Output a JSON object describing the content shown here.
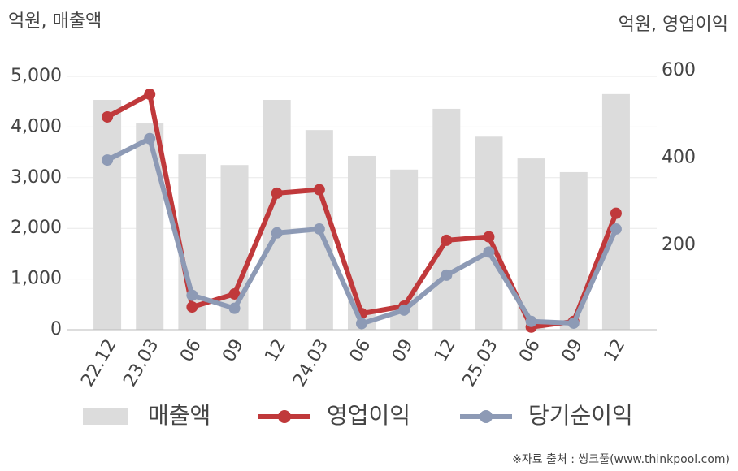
{
  "chart_data": {
    "type": "bar-line",
    "y_unit_label": "억원, 매출액",
    "y2_unit_label": "억원, 영업이익",
    "source": "※자료 출처 : 씽크풀(www.thinkpool.com)",
    "categories": [
      "22.12",
      "23.03",
      "06",
      "09",
      "12",
      "24.03",
      "06",
      "09",
      "12",
      "25.03",
      "06",
      "09",
      "12"
    ],
    "series": [
      {
        "name": "매출액",
        "color": "#dcdcdc",
        "kind": "bar",
        "values": [
          4535,
          4070,
          3460,
          3250,
          4535,
          3940,
          3430,
          3160,
          4360,
          3810,
          3380,
          3110,
          4650
        ]
      },
      {
        "name": "영업이익",
        "color": "#c0393b",
        "kind": "line",
        "axis": "y2",
        "values": [
          494,
          546,
          58,
          88,
          319,
          327,
          43,
          60,
          211,
          219,
          12,
          25,
          273
        ]
      },
      {
        "name": "당기순이익",
        "color": "#8d9ab5",
        "kind": "line",
        "axis": "y2",
        "values": [
          395,
          444,
          85,
          55,
          228,
          237,
          20,
          51,
          131,
          184,
          25,
          21,
          237
        ]
      }
    ],
    "ylim": [
      0,
      5000
    ],
    "yticks": [
      0,
      {
        "value": 1000,
        "label": "1,000"
      },
      {
        "value": 2000,
        "label": "2,000"
      },
      {
        "value": 3000,
        "label": "3,000"
      },
      {
        "value": 4000,
        "label": "4,000"
      },
      {
        "value": 5000,
        "label": "5,000"
      }
    ],
    "y2lim": [
      6,
      587
    ],
    "y2ticks": [
      200,
      400,
      600
    ],
    "grid": true
  }
}
